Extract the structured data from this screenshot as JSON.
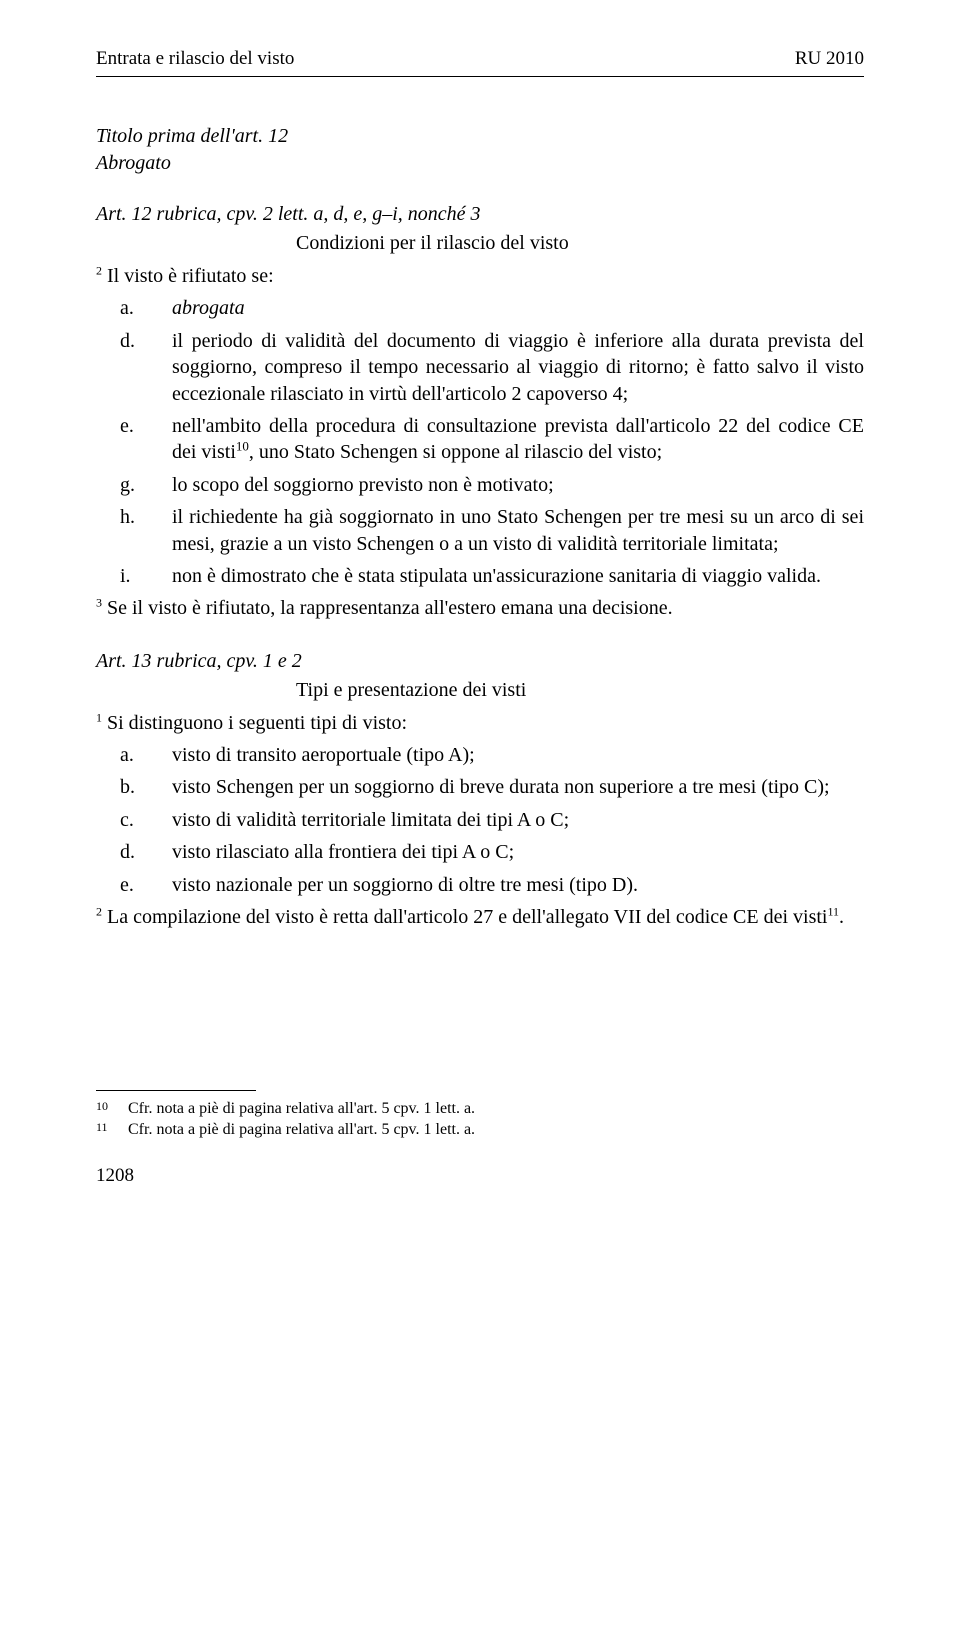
{
  "header": {
    "left": "Entrata e rilascio del visto",
    "right": "RU 2010"
  },
  "title_block": {
    "title": "Titolo prima dell'art. 12",
    "abrogato": "Abrogato"
  },
  "art12": {
    "heading": "Art. 12 rubrica, cpv. 2 lett. a, d, e, g–i, nonché 3",
    "subtitle": "Condizioni per il rilascio del visto",
    "para2_intro_sup": "2",
    "para2_intro": " Il visto è rifiutato se:",
    "items": {
      "a": {
        "marker": "a.",
        "text": "abrogata",
        "italic": true
      },
      "d": {
        "marker": "d.",
        "text": "il periodo di validità del documento di viaggio è inferiore alla durata prevista del soggiorno, compreso il tempo necessario al viaggio di ritorno; è fatto salvo il visto eccezionale rilasciato in virtù dell'articolo 2 capoverso 4;"
      },
      "e": {
        "marker": "e.",
        "text_before": "nell'ambito della procedura di consultazione prevista dall'articolo 22 del codice CE dei visti",
        "sup": "10",
        "text_after": ", uno Stato Schengen si oppone al rilascio del visto;"
      },
      "g": {
        "marker": "g.",
        "text": "lo scopo del soggiorno previsto non è motivato;"
      },
      "h": {
        "marker": "h.",
        "text": "il richiedente ha già soggiornato in uno Stato Schengen per tre mesi su un arco di sei mesi, grazie a un visto Schengen o a un visto di validità territoriale limitata;"
      },
      "i": {
        "marker": "i.",
        "text": "non è dimostrato che è stata stipulata un'assicurazione sanitaria di viaggio valida."
      }
    },
    "para3_sup": "3",
    "para3": " Se il visto è rifiutato, la rappresentanza all'estero emana una decisione."
  },
  "art13": {
    "heading": "Art. 13 rubrica, cpv. 1 e 2",
    "subtitle": "Tipi e presentazione dei visti",
    "para1_sup": "1",
    "para1": " Si distinguono i seguenti tipi di visto:",
    "items": {
      "a": {
        "marker": "a.",
        "text": "visto di transito aeroportuale (tipo A);"
      },
      "b": {
        "marker": "b.",
        "text": "visto Schengen per un soggiorno di breve durata non superiore a tre mesi (tipo C);"
      },
      "c": {
        "marker": "c.",
        "text": "visto di validità territoriale limitata dei tipi A o C;"
      },
      "d": {
        "marker": "d.",
        "text": "visto rilasciato alla frontiera dei tipi A o C;"
      },
      "e": {
        "marker": "e.",
        "text": "visto nazionale per un soggiorno di oltre tre mesi (tipo D)."
      }
    },
    "para2_sup": "2",
    "para2_before": " La compilazione del visto è retta dall'articolo 27 e dell'allegato VII del codice CE dei visti",
    "para2_sup2": "11",
    "para2_after": "."
  },
  "footnotes": {
    "f10": {
      "num": "10",
      "text": "Cfr. nota a piè di pagina relativa all'art. 5 cpv. 1 lett. a."
    },
    "f11": {
      "num": "11",
      "text": "Cfr. nota a piè di pagina relativa all'art. 5 cpv. 1 lett. a."
    }
  },
  "page_number": "1208"
}
